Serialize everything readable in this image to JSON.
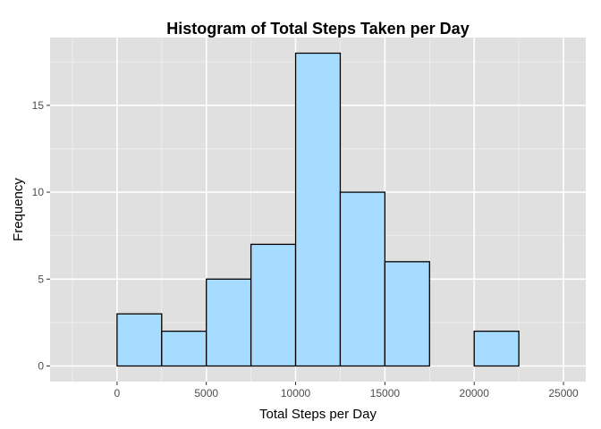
{
  "chart_data": {
    "type": "bar",
    "title": "Histogram of Total Steps Taken per Day",
    "xlabel": "Total Steps per Day",
    "ylabel": "Frequency",
    "xlim": [
      -3750,
      26250
    ],
    "ylim": [
      -0.9,
      18.9
    ],
    "x_ticks": [
      0,
      5000,
      10000,
      15000,
      20000,
      25000
    ],
    "x_tick_labels": [
      "0",
      "5000",
      "10000",
      "15000",
      "20000",
      "25000"
    ],
    "y_ticks": [
      0,
      5,
      10,
      15
    ],
    "y_tick_labels": [
      "0",
      "5",
      "10",
      "15"
    ],
    "bin_width": 2500,
    "bins": [
      {
        "start": -2500,
        "end": 0,
        "count": 0
      },
      {
        "start": 0,
        "end": 2500,
        "count": 3
      },
      {
        "start": 2500,
        "end": 5000,
        "count": 2
      },
      {
        "start": 5000,
        "end": 7500,
        "count": 5
      },
      {
        "start": 7500,
        "end": 10000,
        "count": 7
      },
      {
        "start": 10000,
        "end": 12500,
        "count": 18
      },
      {
        "start": 12500,
        "end": 15000,
        "count": 10
      },
      {
        "start": 15000,
        "end": 17500,
        "count": 6
      },
      {
        "start": 17500,
        "end": 20000,
        "count": 0
      },
      {
        "start": 20000,
        "end": 22500,
        "count": 2
      },
      {
        "start": 22500,
        "end": 25000,
        "count": 0
      }
    ],
    "grid": true,
    "colors": {
      "panel_background": "#e0e0e0",
      "grid_major": "#ffffff",
      "grid_minor": "#f0f0f0",
      "bar_fill": "#a6dcff",
      "bar_stroke": "#000000",
      "tick_text": "#4d4d4d"
    }
  }
}
